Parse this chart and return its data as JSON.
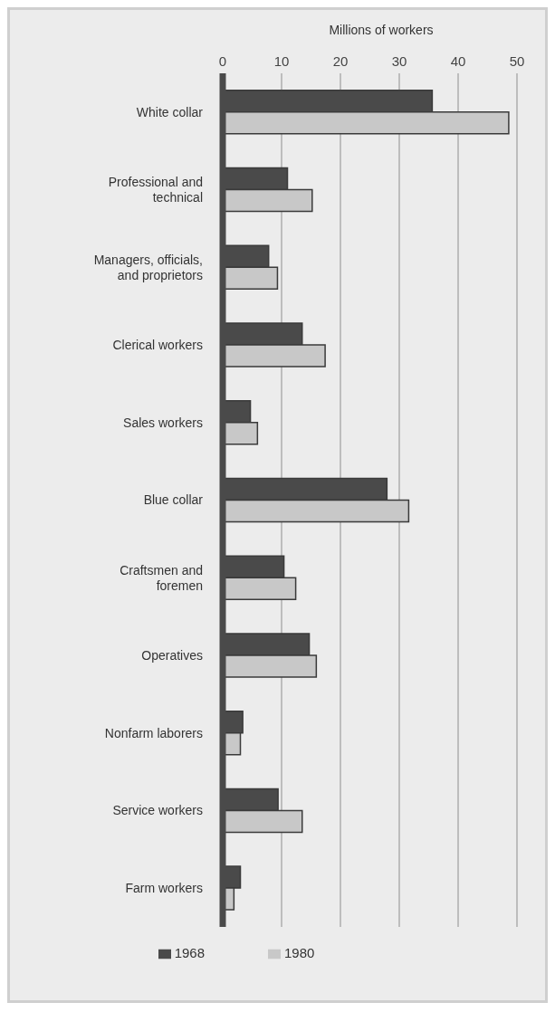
{
  "chart_data": {
    "type": "bar",
    "orientation": "horizontal",
    "xlabel": "Millions of workers",
    "categories": [
      "White collar",
      "Professional and technical",
      "Managers, officials, and proprietors",
      "Clerical workers",
      "Sales workers",
      "Blue collar",
      "Craftsmen and foremen",
      "Operatives",
      "Nonfarm laborers",
      "Service workers",
      "Farm workers"
    ],
    "series": [
      {
        "name": "1968",
        "color": "#4a4a4a",
        "values": [
          35.6,
          11.0,
          7.8,
          13.5,
          4.7,
          27.9,
          10.4,
          14.7,
          3.4,
          9.4,
          3.0
        ]
      },
      {
        "name": "1980",
        "color": "#c8c8c8",
        "values": [
          48.6,
          15.2,
          9.3,
          17.4,
          5.9,
          31.6,
          12.4,
          15.9,
          3.0,
          13.5,
          1.9
        ]
      }
    ],
    "xlim": [
      0,
      50
    ],
    "xticks": [
      0,
      10,
      20,
      30,
      40,
      50
    ],
    "grid": "x",
    "legend": "bottom"
  }
}
